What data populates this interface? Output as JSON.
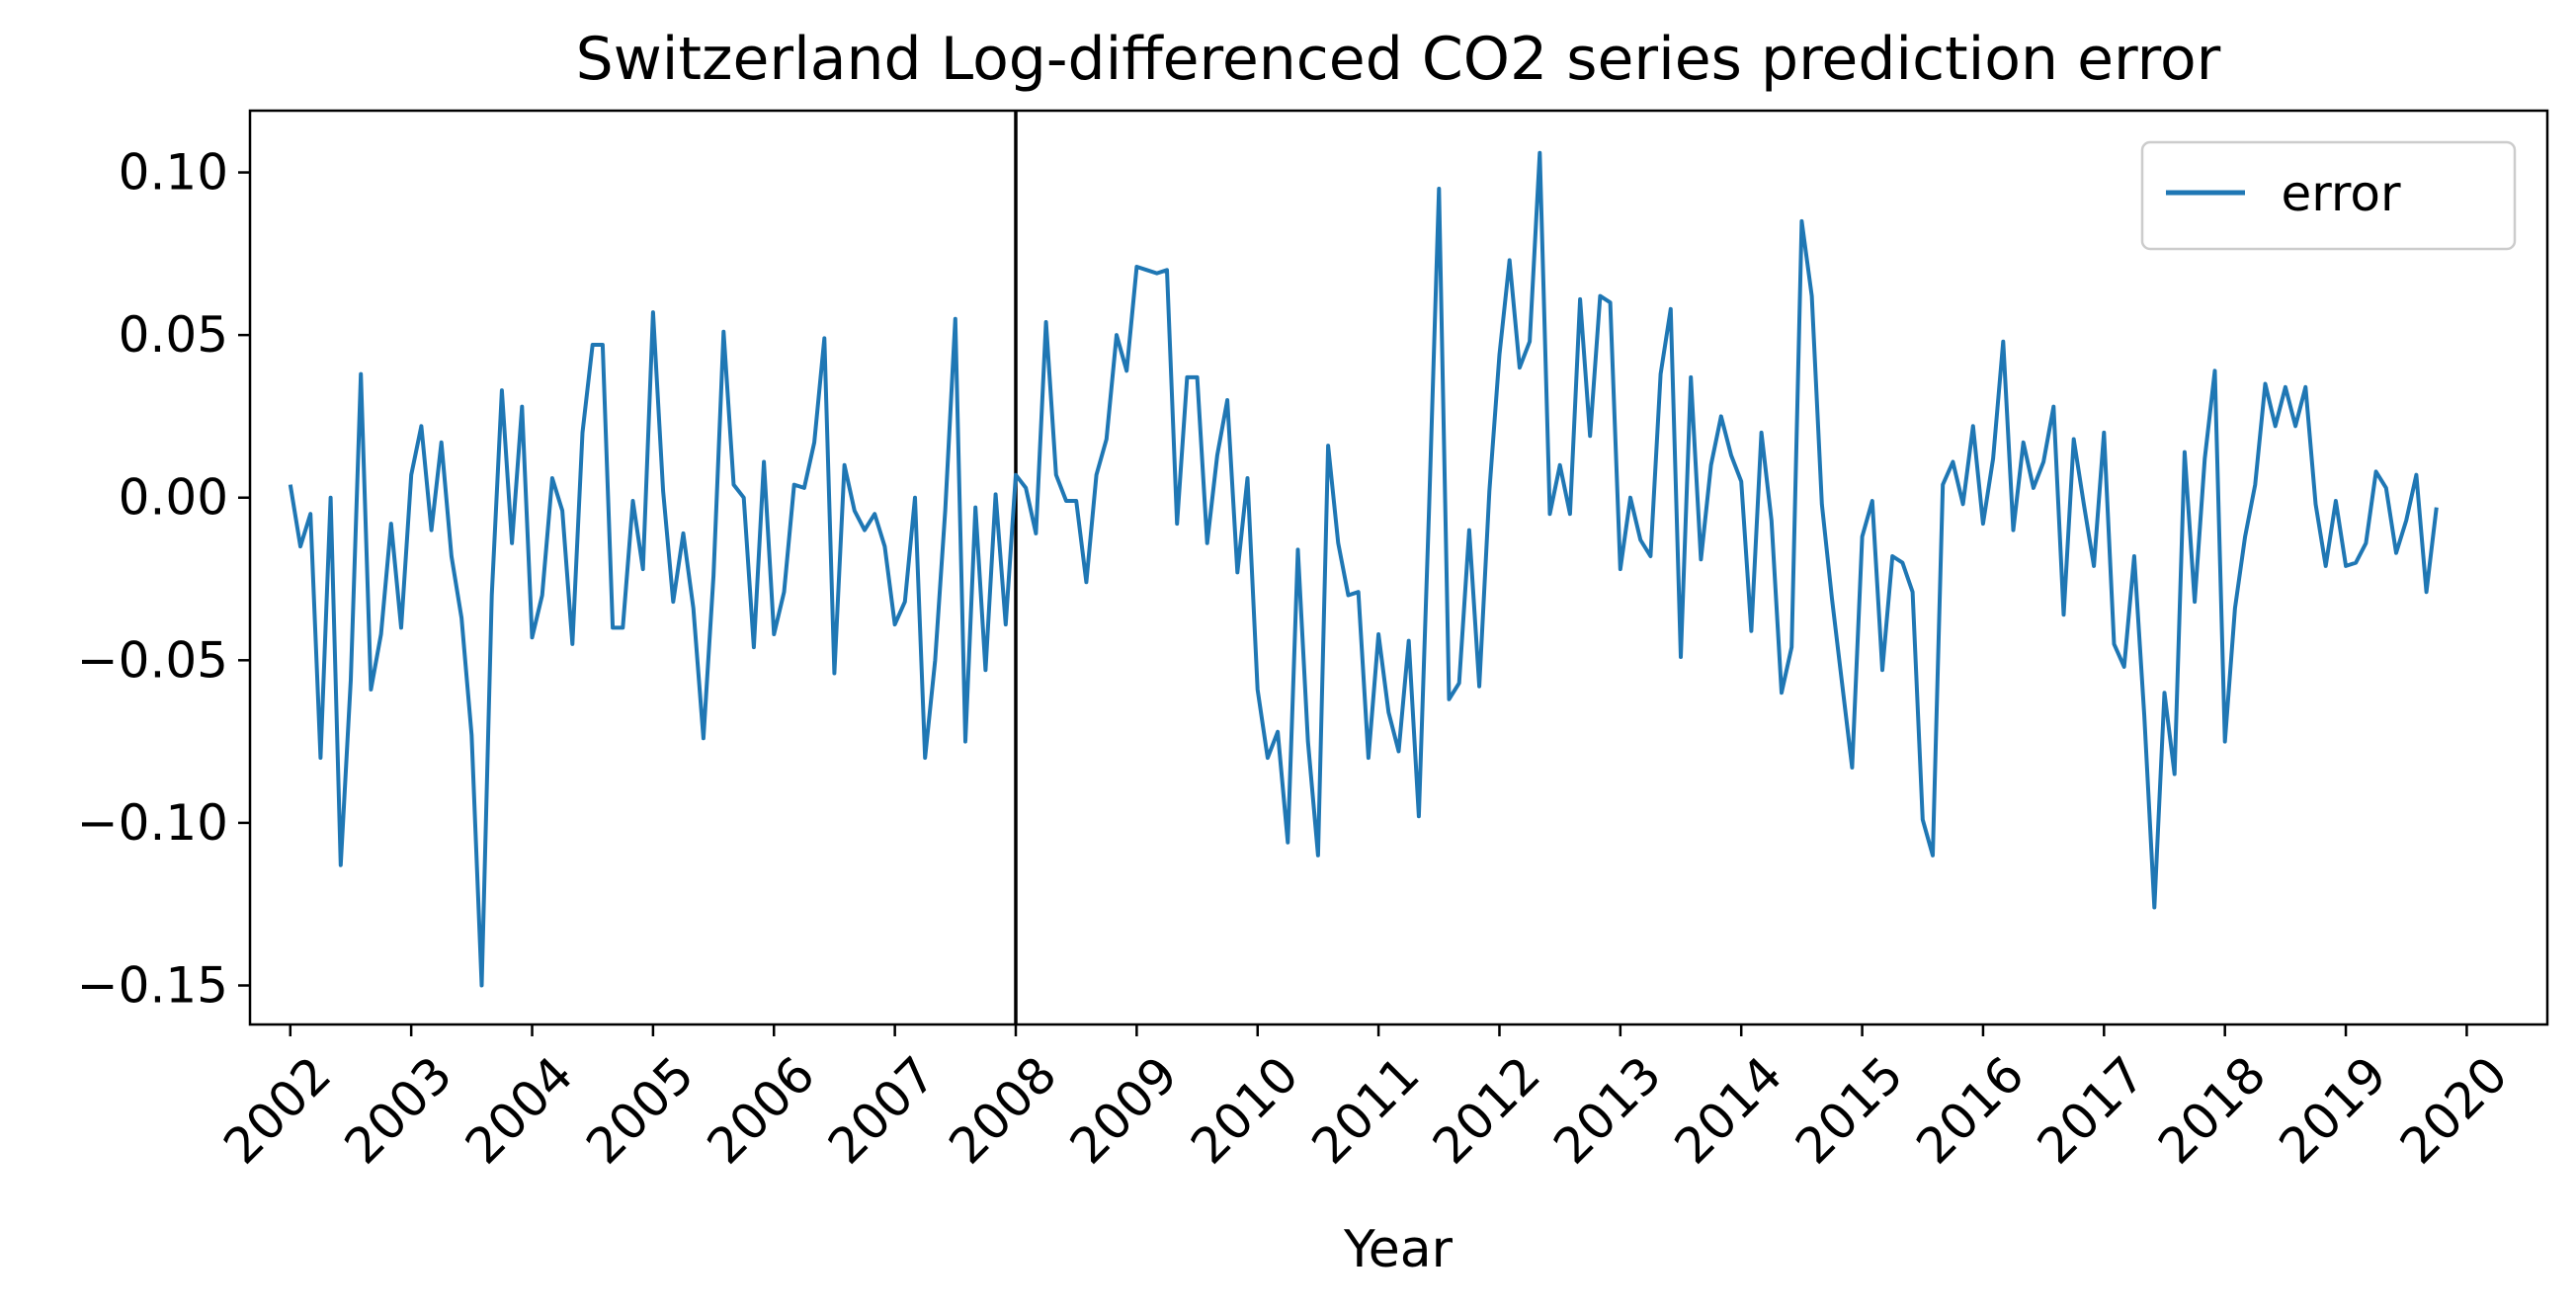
{
  "chart_data": {
    "type": "line",
    "title": "Switzerland Log-differenced CO2 series prediction error",
    "xlabel": "Year",
    "ylabel": "",
    "xlim": [
      "2001-09",
      "2020-09"
    ],
    "ylim": [
      -0.162,
      0.119
    ],
    "x_ticks": [
      "2002",
      "2003",
      "2004",
      "2005",
      "2006",
      "2007",
      "2008",
      "2009",
      "2010",
      "2011",
      "2012",
      "2013",
      "2014",
      "2015",
      "2016",
      "2017",
      "2018",
      "2019",
      "2020"
    ],
    "y_ticks": [
      {
        "value": 0.1,
        "label": "0.10"
      },
      {
        "value": 0.05,
        "label": "0.05"
      },
      {
        "value": 0.0,
        "label": "0.00"
      },
      {
        "value": -0.05,
        "label": "−0.05"
      },
      {
        "value": -0.1,
        "label": "−0.10"
      },
      {
        "value": -0.15,
        "label": "−0.15"
      }
    ],
    "grid": false,
    "legend_position": "top-right",
    "vertical_line": {
      "x": "2008-01"
    },
    "colors": {
      "series": "#1f77b4",
      "vline": "#000000",
      "axes": "#000000"
    },
    "series": [
      {
        "name": "error",
        "start": "2002-01",
        "frequency": "monthly",
        "values": [
          0.004,
          -0.015,
          -0.005,
          -0.08,
          0.0,
          -0.113,
          -0.056,
          0.038,
          -0.059,
          -0.042,
          -0.008,
          -0.04,
          0.007,
          0.022,
          -0.01,
          0.017,
          -0.018,
          -0.037,
          -0.073,
          -0.15,
          -0.03,
          0.033,
          -0.014,
          0.028,
          -0.043,
          -0.03,
          0.006,
          -0.004,
          -0.045,
          0.02,
          0.047,
          0.047,
          -0.04,
          -0.04,
          -0.001,
          -0.022,
          0.057,
          0.002,
          -0.032,
          -0.011,
          -0.034,
          -0.074,
          -0.024,
          0.051,
          0.004,
          0.0,
          -0.046,
          0.011,
          -0.042,
          -0.029,
          0.004,
          0.003,
          0.017,
          0.049,
          -0.054,
          0.01,
          -0.004,
          -0.01,
          -0.005,
          -0.015,
          -0.039,
          -0.032,
          0.0,
          -0.08,
          -0.05,
          -0.004,
          0.055,
          -0.075,
          -0.003,
          -0.053,
          0.001,
          -0.039,
          0.007,
          0.003,
          -0.011,
          0.054,
          0.007,
          -0.001,
          -0.001,
          -0.026,
          0.007,
          0.018,
          0.05,
          0.039,
          0.071,
          0.07,
          0.069,
          0.07,
          -0.008,
          0.037,
          0.037,
          -0.014,
          0.013,
          0.03,
          -0.023,
          0.006,
          -0.059,
          -0.08,
          -0.072,
          -0.106,
          -0.016,
          -0.075,
          -0.11,
          0.016,
          -0.014,
          -0.03,
          -0.029,
          -0.08,
          -0.042,
          -0.066,
          -0.078,
          -0.044,
          -0.098,
          -0.005,
          0.095,
          -0.062,
          -0.057,
          -0.01,
          -0.058,
          0.002,
          0.044,
          0.073,
          0.04,
          0.048,
          0.106,
          -0.005,
          0.01,
          -0.005,
          0.061,
          0.019,
          0.062,
          0.06,
          -0.022,
          0.0,
          -0.013,
          -0.018,
          0.038,
          0.058,
          -0.049,
          0.037,
          -0.019,
          0.01,
          0.025,
          0.013,
          0.005,
          -0.041,
          0.02,
          -0.007,
          -0.06,
          -0.046,
          0.085,
          0.062,
          -0.002,
          -0.031,
          -0.057,
          -0.083,
          -0.012,
          -0.001,
          -0.053,
          -0.018,
          -0.02,
          -0.029,
          -0.099,
          -0.11,
          0.004,
          0.011,
          -0.002,
          0.022,
          -0.008,
          0.012,
          0.048,
          -0.01,
          0.017,
          0.003,
          0.011,
          0.028,
          -0.036,
          0.018,
          -0.002,
          -0.021,
          0.02,
          -0.045,
          -0.052,
          -0.018,
          -0.067,
          -0.126,
          -0.06,
          -0.085,
          0.014,
          -0.032,
          0.012,
          0.039,
          -0.075,
          -0.034,
          -0.012,
          0.004,
          0.035,
          0.022,
          0.034,
          0.022,
          0.034,
          -0.002,
          -0.021,
          -0.001,
          -0.021,
          -0.02,
          -0.014,
          0.008,
          0.003,
          -0.017,
          -0.007,
          0.007,
          -0.029,
          -0.003
        ]
      }
    ]
  }
}
